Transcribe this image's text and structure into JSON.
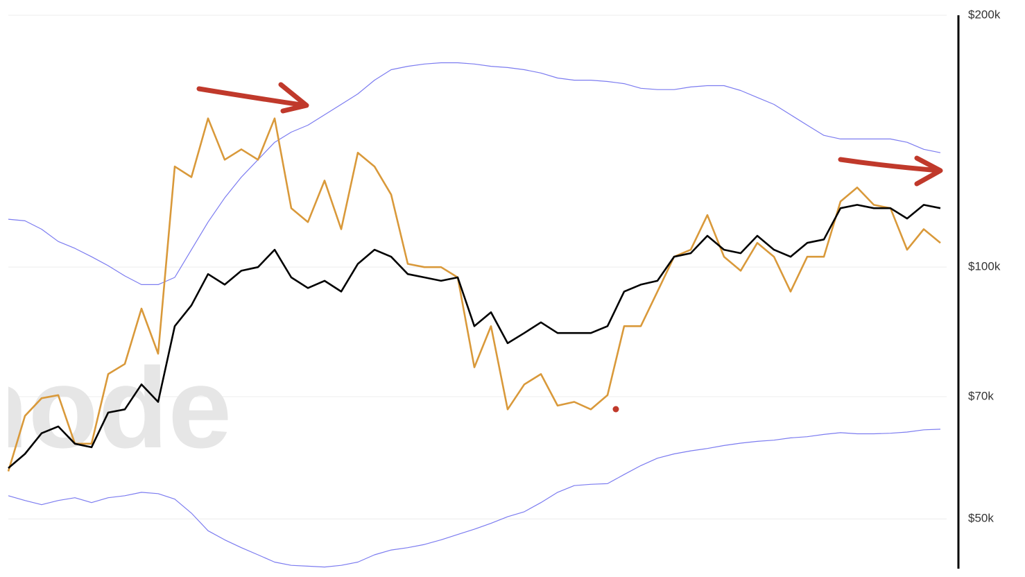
{
  "chart_data": {
    "type": "line",
    "watermark": "node",
    "log_scale": true,
    "grid": true,
    "ylim": [
      43600,
      208600
    ],
    "yticks": [
      {
        "value": 200000,
        "label": "$200k"
      },
      {
        "value": 100000,
        "label": "$100k"
      },
      {
        "value": 70000,
        "label": "$70k"
      },
      {
        "value": 50000,
        "label": "$50k"
      }
    ],
    "categories": [
      null,
      null,
      null,
      null,
      null,
      null,
      null,
      null,
      null,
      null,
      null,
      null,
      null,
      null,
      null,
      null,
      null,
      null,
      null,
      null,
      null,
      null,
      null,
      null,
      null,
      null,
      null,
      null,
      null,
      null,
      null,
      null,
      null,
      null,
      null,
      null,
      null,
      null,
      null,
      null,
      null,
      null,
      null,
      null,
      null,
      null,
      null,
      null,
      null,
      null,
      null,
      null,
      null,
      null,
      null,
      null,
      null
    ],
    "series": [
      {
        "color": "#7b7bf0",
        "width": 1.2,
        "values": [
          114100,
          113600,
          111000,
          107300,
          105300,
          102900,
          100400,
          97600,
          95300,
          95300,
          97200,
          104900,
          113200,
          121000,
          128100,
          134400,
          141000,
          145000,
          147800,
          152100,
          156500,
          161100,
          167300,
          172200,
          173800,
          174900,
          175500,
          175500,
          174900,
          173800,
          173200,
          172200,
          170600,
          168300,
          167300,
          167300,
          166700,
          165700,
          163600,
          163000,
          163000,
          164200,
          164800,
          164800,
          162600,
          159500,
          156500,
          152100,
          147800,
          143700,
          142300,
          142300,
          142300,
          142300,
          141000,
          138300,
          137000
        ]
      },
      {
        "color": "#7b7bf0",
        "width": 1.2,
        "values": [
          53300,
          52600,
          52000,
          52600,
          53000,
          52300,
          53000,
          53300,
          53800,
          53600,
          52800,
          50800,
          48400,
          47200,
          46200,
          45300,
          44400,
          44000,
          43900,
          43800,
          44000,
          44400,
          45300,
          45900,
          46200,
          46600,
          47200,
          47900,
          48600,
          49400,
          50300,
          51000,
          52300,
          53800,
          54800,
          55000,
          55100,
          56500,
          57900,
          59100,
          59800,
          60300,
          60700,
          61200,
          61600,
          61900,
          62100,
          62500,
          62700,
          63100,
          63400,
          63200,
          63200,
          63300,
          63500,
          63900,
          64000
        ]
      },
      {
        "color": "#d9993a",
        "width": 2.6,
        "values": [
          57000,
          66400,
          69700,
          70300,
          61500,
          61500,
          74500,
          76600,
          89200,
          78800,
          131900,
          128100,
          150600,
          134400,
          138300,
          134400,
          150600,
          117600,
          113200,
          126900,
          111000,
          137000,
          131900,
          122100,
          100900,
          100000,
          100000,
          97200,
          75900,
          85000,
          67600,
          72400,
          74500,
          68300,
          69000,
          67600,
          70300,
          85000,
          85000,
          93500,
          102900,
          104900,
          115400,
          102900,
          99000,
          106900,
          102900,
          93500,
          102900,
          102900,
          119800,
          124500,
          118700,
          117600,
          104900,
          111000,
          106900
        ]
      },
      {
        "color": "#000000",
        "width": 2.6,
        "values": [
          57500,
          59800,
          63300,
          64500,
          61500,
          60900,
          67000,
          67600,
          72400,
          69000,
          85000,
          90000,
          98100,
          95300,
          99000,
          100000,
          104900,
          97200,
          94400,
          96300,
          93500,
          100900,
          104900,
          102900,
          98100,
          97200,
          96300,
          97200,
          85000,
          88300,
          81100,
          83400,
          85900,
          83400,
          83400,
          83400,
          85000,
          93500,
          95300,
          96300,
          102900,
          103900,
          109000,
          104900,
          103900,
          109000,
          104900,
          102900,
          106900,
          107900,
          117600,
          118700,
          117600,
          117600,
          114300,
          118700,
          117600
        ]
      }
    ]
  }
}
